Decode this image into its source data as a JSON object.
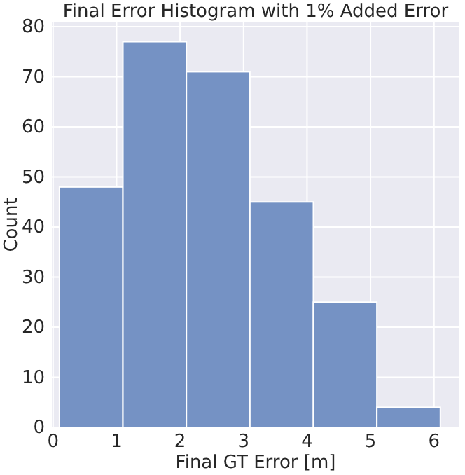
{
  "chart_data": {
    "type": "histogram",
    "title": "Final Error Histogram with 1% Added Error",
    "xlabel": "Final GT Error [m]",
    "ylabel": "Count",
    "bins": [
      0.1,
      1.1,
      2.1,
      3.1,
      4.1,
      5.1,
      6.1
    ],
    "values": [
      48,
      77,
      71,
      45,
      25,
      4
    ],
    "color": "#7592c4",
    "xlim": [
      -0.02,
      6.4
    ],
    "xticks": [
      0,
      1,
      2,
      3,
      4,
      5,
      6
    ],
    "ylim": [
      0,
      80.85
    ],
    "yticks": [
      0,
      10,
      20,
      30,
      40,
      50,
      60,
      70,
      80
    ],
    "grid": true
  }
}
